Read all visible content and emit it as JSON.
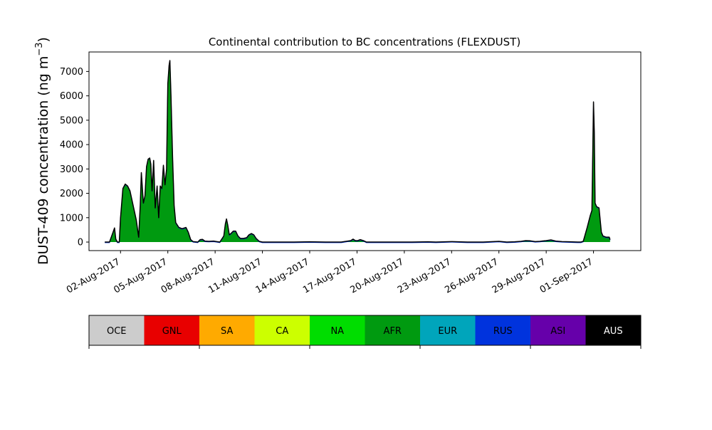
{
  "chart_data": {
    "type": "area",
    "title": "Continental contribution to BC concentrations (FLEXDUST)",
    "ylabel": {
      "main": "DUST-409 concentration (ng m",
      "sup": "−3",
      "tail": ")"
    },
    "xlabel": "",
    "ylim": [
      -350,
      7800
    ],
    "yticks": [
      0,
      1000,
      2000,
      3000,
      4000,
      5000,
      6000,
      7000
    ],
    "x_range_days": [
      -1.0,
      34.0
    ],
    "xticks": [
      {
        "day": 1,
        "label": "02-Aug-2017"
      },
      {
        "day": 4,
        "label": "05-Aug-2017"
      },
      {
        "day": 7,
        "label": "08-Aug-2017"
      },
      {
        "day": 10,
        "label": "11-Aug-2017"
      },
      {
        "day": 13,
        "label": "14-Aug-2017"
      },
      {
        "day": 16,
        "label": "17-Aug-2017"
      },
      {
        "day": 19,
        "label": "20-Aug-2017"
      },
      {
        "day": 22,
        "label": "23-Aug-2017"
      },
      {
        "day": 25,
        "label": "26-Aug-2017"
      },
      {
        "day": 28,
        "label": "29-Aug-2017"
      },
      {
        "day": 31,
        "label": "01-Sep-2017"
      }
    ],
    "grid": false,
    "dominant_series": "AFR",
    "fill_color": "#009a10",
    "line_color": "#000000",
    "total_series": [
      [
        0.0,
        0
      ],
      [
        0.3,
        0
      ],
      [
        0.55,
        450
      ],
      [
        0.62,
        580
      ],
      [
        0.7,
        120
      ],
      [
        0.8,
        0
      ],
      [
        0.92,
        0
      ],
      [
        1.0,
        1000
      ],
      [
        1.15,
        2200
      ],
      [
        1.3,
        2380
      ],
      [
        1.45,
        2300
      ],
      [
        1.6,
        2100
      ],
      [
        1.8,
        1500
      ],
      [
        2.0,
        900
      ],
      [
        2.15,
        200
      ],
      [
        2.25,
        1500
      ],
      [
        2.32,
        2850
      ],
      [
        2.45,
        1600
      ],
      [
        2.55,
        1900
      ],
      [
        2.65,
        3100
      ],
      [
        2.75,
        3400
      ],
      [
        2.85,
        3450
      ],
      [
        2.92,
        3200
      ],
      [
        3.0,
        2100
      ],
      [
        3.1,
        3350
      ],
      [
        3.2,
        1400
      ],
      [
        3.32,
        2300
      ],
      [
        3.42,
        1000
      ],
      [
        3.52,
        2300
      ],
      [
        3.62,
        2200
      ],
      [
        3.72,
        3150
      ],
      [
        3.82,
        2350
      ],
      [
        3.92,
        3000
      ],
      [
        4.0,
        6500
      ],
      [
        4.08,
        7250
      ],
      [
        4.13,
        7450
      ],
      [
        4.2,
        6000
      ],
      [
        4.3,
        3500
      ],
      [
        4.4,
        1500
      ],
      [
        4.5,
        800
      ],
      [
        4.7,
        600
      ],
      [
        4.9,
        550
      ],
      [
        5.05,
        580
      ],
      [
        5.15,
        600
      ],
      [
        5.3,
        400
      ],
      [
        5.45,
        100
      ],
      [
        5.6,
        20
      ],
      [
        5.9,
        0
      ],
      [
        6.05,
        100
      ],
      [
        6.2,
        110
      ],
      [
        6.35,
        40
      ],
      [
        6.6,
        30
      ],
      [
        6.9,
        40
      ],
      [
        7.1,
        20
      ],
      [
        7.3,
        0
      ],
      [
        7.55,
        250
      ],
      [
        7.65,
        750
      ],
      [
        7.72,
        950
      ],
      [
        7.8,
        700
      ],
      [
        7.9,
        300
      ],
      [
        8.0,
        350
      ],
      [
        8.15,
        450
      ],
      [
        8.3,
        450
      ],
      [
        8.45,
        250
      ],
      [
        8.6,
        150
      ],
      [
        8.8,
        150
      ],
      [
        9.0,
        180
      ],
      [
        9.15,
        300
      ],
      [
        9.3,
        350
      ],
      [
        9.45,
        300
      ],
      [
        9.6,
        150
      ],
      [
        9.8,
        30
      ],
      [
        10.0,
        0
      ],
      [
        12.0,
        0
      ],
      [
        13.0,
        10
      ],
      [
        14.0,
        0
      ],
      [
        15.0,
        0
      ],
      [
        15.6,
        60
      ],
      [
        15.75,
        120
      ],
      [
        15.9,
        60
      ],
      [
        16.05,
        60
      ],
      [
        16.2,
        100
      ],
      [
        16.4,
        60
      ],
      [
        16.6,
        0
      ],
      [
        17.5,
        0
      ],
      [
        18.5,
        0
      ],
      [
        19.5,
        0
      ],
      [
        20.5,
        10
      ],
      [
        21.0,
        0
      ],
      [
        22.0,
        20
      ],
      [
        23.0,
        0
      ],
      [
        24.0,
        0
      ],
      [
        25.0,
        30
      ],
      [
        25.5,
        0
      ],
      [
        26.0,
        10
      ],
      [
        26.4,
        30
      ],
      [
        26.7,
        60
      ],
      [
        27.0,
        50
      ],
      [
        27.3,
        20
      ],
      [
        27.6,
        30
      ],
      [
        28.0,
        60
      ],
      [
        28.3,
        90
      ],
      [
        28.6,
        40
      ],
      [
        29.0,
        20
      ],
      [
        29.5,
        10
      ],
      [
        30.0,
        0
      ],
      [
        30.2,
        0
      ],
      [
        30.35,
        30
      ],
      [
        30.6,
        600
      ],
      [
        30.8,
        1100
      ],
      [
        30.9,
        1300
      ],
      [
        30.95,
        3500
      ],
      [
        31.0,
        5750
      ],
      [
        31.05,
        4500
      ],
      [
        31.1,
        1600
      ],
      [
        31.2,
        1450
      ],
      [
        31.35,
        1400
      ],
      [
        31.5,
        400
      ],
      [
        31.6,
        250
      ],
      [
        31.8,
        200
      ],
      [
        32.0,
        200
      ],
      [
        32.05,
        100
      ]
    ],
    "legend": {
      "placement": "bottom",
      "items": [
        {
          "name": "OCE",
          "color": "#cccccc",
          "text_color": "#000000"
        },
        {
          "name": "GNL",
          "color": "#e80000",
          "text_color": "#000000"
        },
        {
          "name": "SA",
          "color": "#ffaa00",
          "text_color": "#000000"
        },
        {
          "name": "CA",
          "color": "#ccff00",
          "text_color": "#000000"
        },
        {
          "name": "NA",
          "color": "#00dd00",
          "text_color": "#000000"
        },
        {
          "name": "AFR",
          "color": "#009a10",
          "text_color": "#000000"
        },
        {
          "name": "EUR",
          "color": "#00a5bb",
          "text_color": "#000000"
        },
        {
          "name": "RUS",
          "color": "#0033dd",
          "text_color": "#000000"
        },
        {
          "name": "ASI",
          "color": "#6600aa",
          "text_color": "#000000"
        },
        {
          "name": "AUS",
          "color": "#000000",
          "text_color": "#ffffff"
        }
      ]
    }
  }
}
